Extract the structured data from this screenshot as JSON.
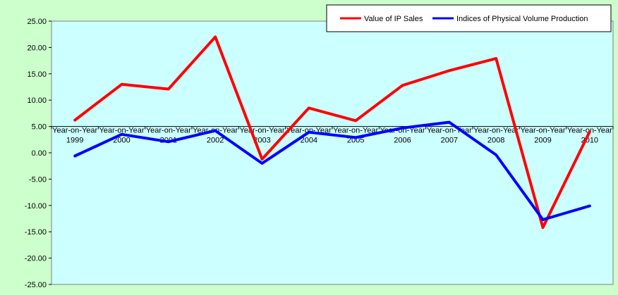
{
  "chart_data": {
    "type": "line",
    "categories": [
      "Year-on-Year 1999",
      "Year-on-Year 2000",
      "Year-on-Year 2001",
      "Year-on-Year 2002",
      "Year-on-Year 2003",
      "Year-on-Year 2004",
      "Year-on-Year 2005",
      "Year-on-Year 2006",
      "Year-on-Year 2007",
      "Year-on-Year 2008",
      "Year-on-Year 2009",
      "Year-on-Year 2010"
    ],
    "category_lines": [
      [
        "Year-on-Year",
        "1999"
      ],
      [
        "Year-on-Year",
        "2000"
      ],
      [
        "Year-on-Year",
        "2001"
      ],
      [
        "Year-on-Year",
        "2002"
      ],
      [
        "Year-on-Year",
        "2003"
      ],
      [
        "Year-on-Year",
        "2004"
      ],
      [
        "Year-on-Year",
        "2005"
      ],
      [
        "Year-on-Year",
        "2006"
      ],
      [
        "Year-on-Year",
        "2007"
      ],
      [
        "Year-on-Year",
        "2008"
      ],
      [
        "Year-on-Year",
        "2009"
      ],
      [
        "Year-on-Year",
        "2010"
      ]
    ],
    "series": [
      {
        "name": "Value of IP Sales",
        "color": "#ff0000",
        "values": [
          6.2,
          13.0,
          12.1,
          22.0,
          -1.2,
          8.5,
          6.1,
          12.8,
          15.6,
          17.9,
          -14.2,
          4.0
        ]
      },
      {
        "name": "Indices of Physical Volume Production",
        "color": "#0000ff",
        "values": [
          -0.6,
          3.5,
          2.1,
          4.2,
          -2.0,
          3.9,
          2.9,
          4.7,
          5.8,
          -0.4,
          -12.7,
          -10.1
        ]
      }
    ],
    "yticks": [
      "25.00",
      "20.00",
      "15.00",
      "10.00",
      "5.00",
      "0.00",
      "-5.00",
      "-10.00",
      "-15.00",
      "-20.00",
      "-25.00"
    ],
    "ylim": [
      -25,
      25
    ],
    "x_axis_crosses_at": 5,
    "grid": false,
    "legend_position": "top-right",
    "colors": {
      "background": "#ccffcc",
      "plot_area": "#ccffff"
    }
  }
}
